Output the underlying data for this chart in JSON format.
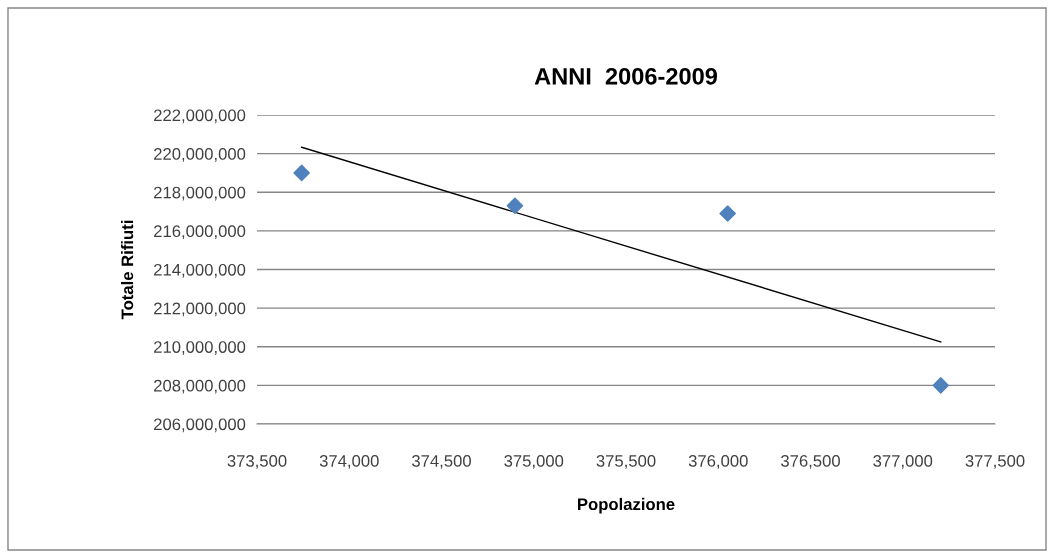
{
  "chart_data": {
    "type": "scatter",
    "title": "ANNI  2006-2009",
    "xlabel": "Popolazione",
    "ylabel": "Totale Rifiuti",
    "x": [
      373742,
      374898,
      376051,
      377206
    ],
    "series": [
      {
        "color": "#4f81bd",
        "marker": "diamond",
        "values": [
          219000000,
          217300000,
          216900000,
          208000000
        ]
      },
      {
        "type": "line",
        "color": "#000000",
        "line_style": "solid",
        "x": [
          373742,
          377206
        ],
        "values": [
          220330000,
          210250000
        ]
      }
    ],
    "xlim": [
      373500,
      377500
    ],
    "xticks": [
      {
        "value": 373500,
        "label": "373,500"
      },
      {
        "value": 374000,
        "label": "374,000"
      },
      {
        "value": 374500,
        "label": "374,500"
      },
      {
        "value": 375000,
        "label": "375,000"
      },
      {
        "value": 375500,
        "label": "375,500"
      },
      {
        "value": 376000,
        "label": "376,000"
      },
      {
        "value": 376500,
        "label": "376,500"
      },
      {
        "value": 377000,
        "label": "377,000"
      },
      {
        "value": 377500,
        "label": "377,500"
      }
    ],
    "ylim": [
      206000000,
      222000000
    ],
    "yticks": [
      {
        "value": 206000000,
        "label": "206,000,000"
      },
      {
        "value": 208000000,
        "label": "208,000,000"
      },
      {
        "value": 210000000,
        "label": "210,000,000"
      },
      {
        "value": 212000000,
        "label": "212,000,000"
      },
      {
        "value": 214000000,
        "label": "214,000,000"
      },
      {
        "value": 216000000,
        "label": "216,000,000"
      },
      {
        "value": 218000000,
        "label": "218,000,000"
      },
      {
        "value": 220000000,
        "label": "220,000,000"
      },
      {
        "value": 222000000,
        "label": "222,000,000"
      }
    ],
    "grid": "y",
    "legend": false
  }
}
